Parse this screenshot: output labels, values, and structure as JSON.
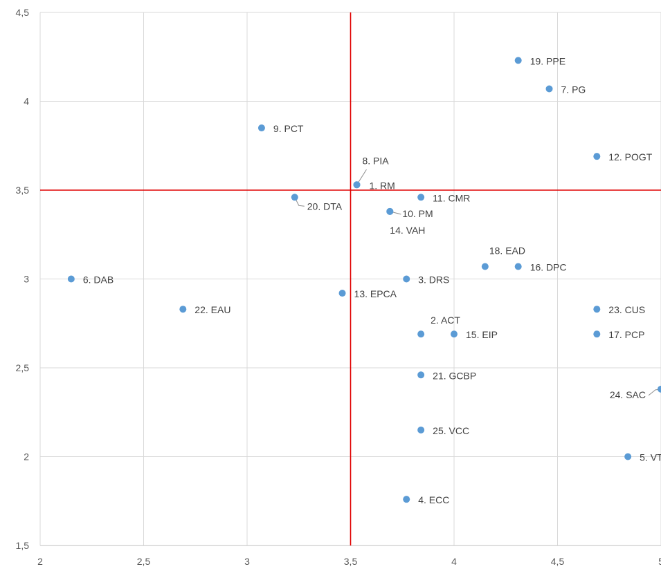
{
  "chart_data": {
    "type": "scatter",
    "title": "",
    "xlabel": "",
    "ylabel": "",
    "xlim": [
      2,
      5
    ],
    "ylim": [
      1.5,
      4.5
    ],
    "x_ticks": [
      {
        "value": 2,
        "label": "2"
      },
      {
        "value": 2.5,
        "label": "2,5"
      },
      {
        "value": 3,
        "label": "3"
      },
      {
        "value": 3.5,
        "label": "3,5"
      },
      {
        "value": 4,
        "label": "4"
      },
      {
        "value": 4.5,
        "label": "4,5"
      },
      {
        "value": 5,
        "label": "5"
      }
    ],
    "y_ticks": [
      {
        "value": 1.5,
        "label": "1,5"
      },
      {
        "value": 2,
        "label": "2"
      },
      {
        "value": 2.5,
        "label": "2,5"
      },
      {
        "value": 3,
        "label": "3"
      },
      {
        "value": 3.5,
        "label": "3,5"
      },
      {
        "value": 4,
        "label": "4"
      },
      {
        "value": 4.5,
        "label": "4,5"
      }
    ],
    "grid": true,
    "point_color": "#5b9bd5",
    "grid_color": "#d9d9d9",
    "reference_lines": {
      "x": 3.5,
      "y": 3.5,
      "color": "#e00000"
    },
    "points": [
      {
        "label": "1. RM",
        "x": 3.53,
        "y": 3.53
      },
      {
        "label": "2. ACT",
        "x": 3.84,
        "y": 2.69
      },
      {
        "label": "3. DRS",
        "x": 3.77,
        "y": 3.0
      },
      {
        "label": "4. ECC",
        "x": 3.77,
        "y": 1.76
      },
      {
        "label": "5. VT",
        "x": 4.84,
        "y": 2.0
      },
      {
        "label": "6. DAB",
        "x": 2.15,
        "y": 3.0
      },
      {
        "label": "7. PG",
        "x": 4.46,
        "y": 4.07
      },
      {
        "label": "8. PIA",
        "x": 3.53,
        "y": 3.53
      },
      {
        "label": "9. PCT",
        "x": 3.07,
        "y": 3.85
      },
      {
        "label": "10. PM",
        "x": 3.69,
        "y": 3.38
      },
      {
        "label": "11. CMR",
        "x": 3.84,
        "y": 3.46
      },
      {
        "label": "12.  POGT",
        "x": 4.69,
        "y": 3.69
      },
      {
        "label": "13. EPCA",
        "x": 3.46,
        "y": 2.92
      },
      {
        "label": "14. VAH",
        "x": 3.69,
        "y": 3.38
      },
      {
        "label": "15. EIP",
        "x": 4.0,
        "y": 2.69
      },
      {
        "label": "16. DPC",
        "x": 4.31,
        "y": 3.07
      },
      {
        "label": "17. PCP",
        "x": 4.69,
        "y": 2.69
      },
      {
        "label": "18. EAD",
        "x": 4.15,
        "y": 3.07
      },
      {
        "label": "19. PPE",
        "x": 4.31,
        "y": 4.23
      },
      {
        "label": "20. DTA",
        "x": 3.23,
        "y": 3.46
      },
      {
        "label": "21. GCBP",
        "x": 3.84,
        "y": 2.46
      },
      {
        "label": "22. EAU",
        "x": 2.69,
        "y": 2.83
      },
      {
        "label": "23. CUS",
        "x": 4.69,
        "y": 2.83
      },
      {
        "label": "24. SAC",
        "x": 5.0,
        "y": 2.38
      },
      {
        "label": "25. VCC",
        "x": 3.84,
        "y": 2.15
      }
    ]
  }
}
